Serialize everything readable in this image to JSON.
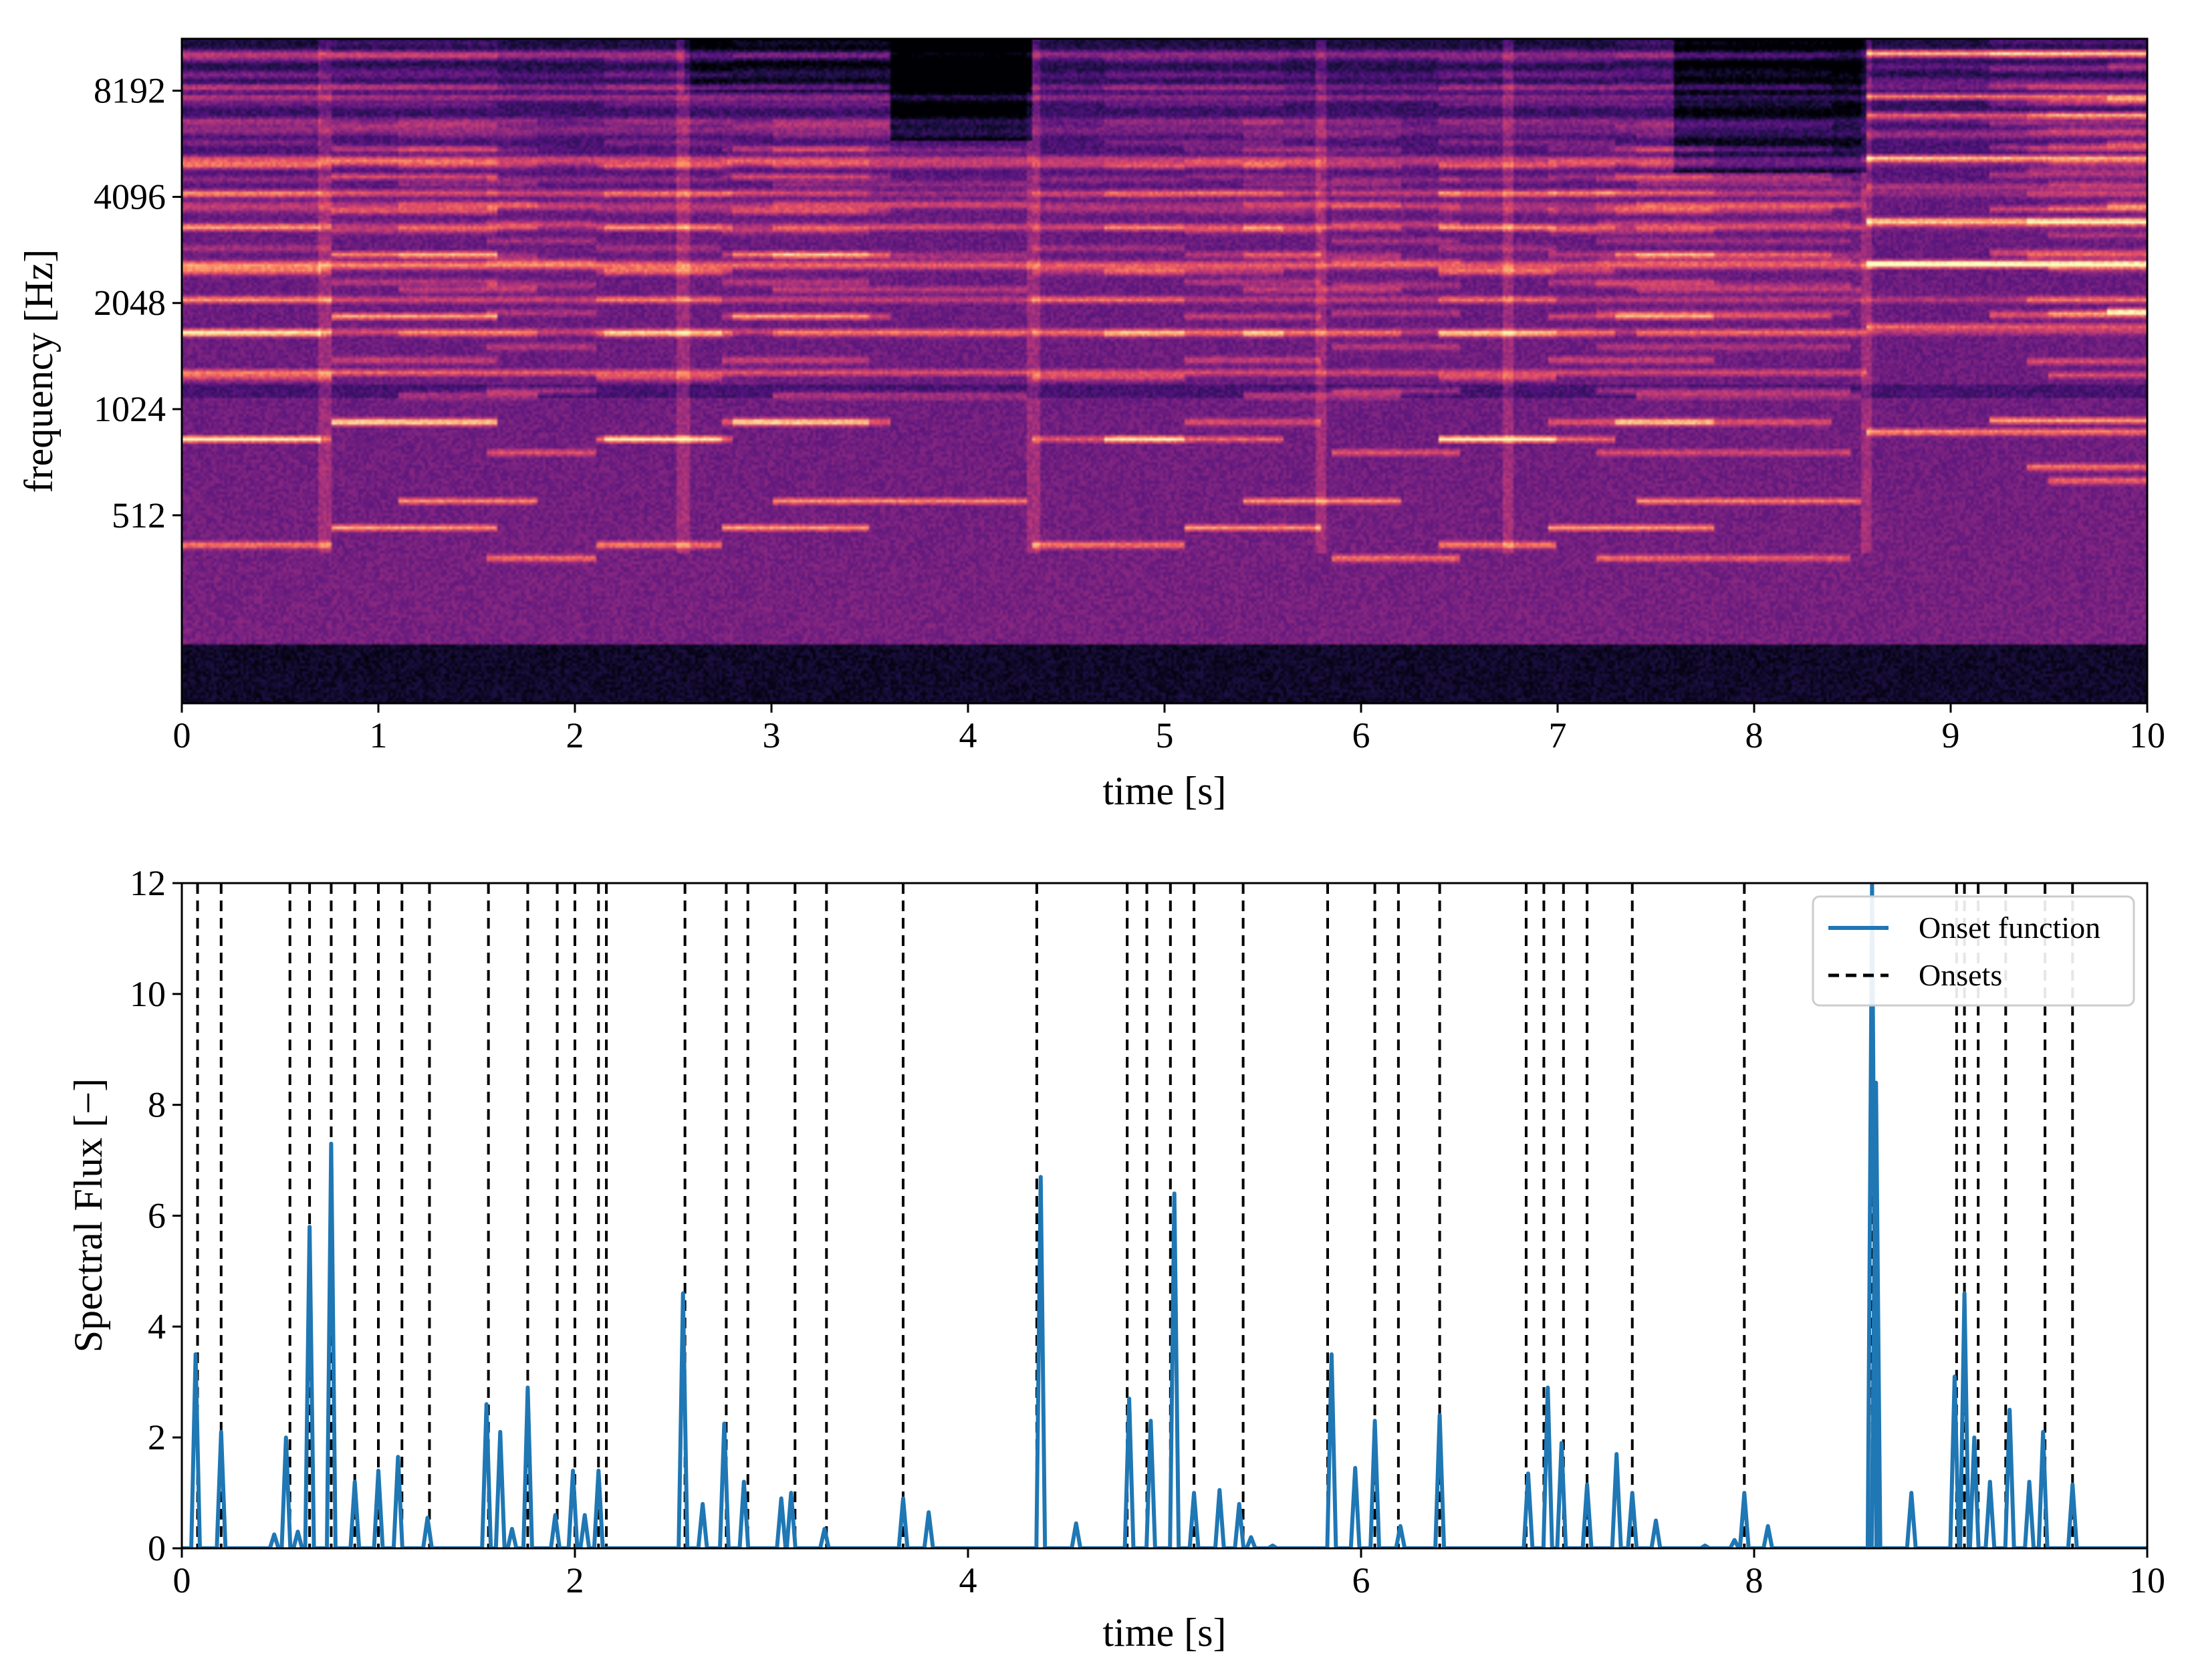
{
  "chart_data": [
    {
      "type": "heatmap",
      "title": "",
      "xlabel": "time [s]",
      "ylabel": "frequency [Hz]",
      "xlim": [
        0,
        10
      ],
      "x_ticks": [
        0,
        1,
        2,
        3,
        4,
        5,
        6,
        7,
        8,
        9,
        10
      ],
      "x_tick_labels": [
        "0",
        "1",
        "2",
        "3",
        "4",
        "5",
        "6",
        "7",
        "8",
        "9",
        "10"
      ],
      "y_scale": "log2",
      "ylim_hz": [
        150,
        11500
      ],
      "y_ticks": [
        512,
        1024,
        2048,
        4096,
        8192
      ],
      "y_tick_labels": [
        "512",
        "1024",
        "2048",
        "4096",
        "8192"
      ],
      "colormap": "magma",
      "segment_boundaries_s": [
        0.72,
        2.55,
        4.33,
        5.8,
        6.75,
        8.58
      ],
      "notes": [
        {
          "t0": 0.0,
          "t1": 0.75,
          "hz": 420,
          "level": 0.85
        },
        {
          "t0": 0.75,
          "t1": 1.6,
          "hz": 470,
          "level": 0.9
        },
        {
          "t0": 1.55,
          "t1": 2.1,
          "hz": 385,
          "level": 0.8
        },
        {
          "t0": 2.1,
          "t1": 2.75,
          "hz": 420,
          "level": 0.85
        },
        {
          "t0": 2.75,
          "t1": 3.5,
          "hz": 470,
          "level": 0.9
        },
        {
          "t0": 3.0,
          "t1": 4.3,
          "hz": 560,
          "level": 0.85
        },
        {
          "t0": 1.1,
          "t1": 1.8,
          "hz": 560,
          "level": 0.8
        },
        {
          "t0": 0.0,
          "t1": 0.7,
          "hz": 840,
          "level": 0.75
        },
        {
          "t0": 0.75,
          "t1": 1.6,
          "hz": 940,
          "level": 0.75
        },
        {
          "t0": 2.15,
          "t1": 2.8,
          "hz": 840,
          "level": 0.7
        },
        {
          "t0": 2.8,
          "t1": 3.6,
          "hz": 940,
          "level": 0.75
        },
        {
          "t0": 4.33,
          "t1": 5.1,
          "hz": 420,
          "level": 0.85
        },
        {
          "t0": 5.1,
          "t1": 5.8,
          "hz": 470,
          "level": 0.85
        },
        {
          "t0": 5.4,
          "t1": 6.2,
          "hz": 560,
          "level": 0.85
        },
        {
          "t0": 5.85,
          "t1": 6.5,
          "hz": 385,
          "level": 0.8
        },
        {
          "t0": 6.4,
          "t1": 7.0,
          "hz": 420,
          "level": 0.85
        },
        {
          "t0": 6.95,
          "t1": 7.8,
          "hz": 470,
          "level": 0.9
        },
        {
          "t0": 7.4,
          "t1": 8.55,
          "hz": 560,
          "level": 0.8
        },
        {
          "t0": 7.2,
          "t1": 8.5,
          "hz": 385,
          "level": 0.75
        },
        {
          "t0": 4.7,
          "t1": 5.6,
          "hz": 840,
          "level": 0.7
        },
        {
          "t0": 6.4,
          "t1": 7.3,
          "hz": 840,
          "level": 0.75
        },
        {
          "t0": 7.3,
          "t1": 8.4,
          "hz": 940,
          "level": 0.7
        },
        {
          "t0": 0.0,
          "t1": 8.58,
          "hz": 1300,
          "level": 0.75
        },
        {
          "t0": 8.58,
          "t1": 10.0,
          "hz": 880,
          "level": 0.95
        },
        {
          "t0": 9.2,
          "t1": 10.0,
          "hz": 950,
          "level": 0.95
        },
        {
          "t0": 9.4,
          "t1": 10.0,
          "hz": 700,
          "level": 0.8
        },
        {
          "t0": 9.5,
          "t1": 10.0,
          "hz": 640,
          "level": 0.75
        },
        {
          "t0": 8.58,
          "t1": 10.0,
          "hz": 2650,
          "level": 0.85
        },
        {
          "t0": 8.58,
          "t1": 10.0,
          "hz": 3500,
          "level": 0.8
        },
        {
          "t0": 9.8,
          "t1": 10.0,
          "hz": 1950,
          "level": 0.8
        },
        {
          "t0": 0.0,
          "t1": 10.0,
          "hz": 2650,
          "level": 0.7
        },
        {
          "t0": 0.0,
          "t1": 10.0,
          "hz": 2100,
          "level": 0.6
        },
        {
          "t0": 0.0,
          "t1": 10.0,
          "hz": 1700,
          "level": 0.6
        }
      ]
    },
    {
      "type": "line",
      "title": "",
      "xlabel": "time [s]",
      "ylabel": "Spectral Flux [−]",
      "xlim": [
        0,
        10
      ],
      "ylim": [
        0,
        12
      ],
      "x_ticks": [
        0,
        2,
        4,
        6,
        8,
        10
      ],
      "x_tick_labels": [
        "0",
        "2",
        "4",
        "6",
        "8",
        "10"
      ],
      "y_ticks": [
        0,
        2,
        4,
        6,
        8,
        10,
        12
      ],
      "y_tick_labels": [
        "0",
        "2",
        "4",
        "6",
        "8",
        "10",
        "12"
      ],
      "legend": {
        "position": "top-right",
        "entries": [
          "Onset function",
          "Onsets"
        ]
      },
      "series": [
        {
          "name": "Onset function",
          "color": "#1f77b4",
          "peaks": [
            [
              0.07,
              3.5
            ],
            [
              0.2,
              2.1
            ],
            [
              0.47,
              0.25
            ],
            [
              0.53,
              2.0
            ],
            [
              0.59,
              0.3
            ],
            [
              0.65,
              5.8
            ],
            [
              0.76,
              7.3
            ],
            [
              0.88,
              1.2
            ],
            [
              1.0,
              1.4
            ],
            [
              1.1,
              1.65
            ],
            [
              1.25,
              0.55
            ],
            [
              1.55,
              2.6
            ],
            [
              1.62,
              2.1
            ],
            [
              1.68,
              0.35
            ],
            [
              1.76,
              2.9
            ],
            [
              1.9,
              0.6
            ],
            [
              1.99,
              1.4
            ],
            [
              2.05,
              0.6
            ],
            [
              2.12,
              1.4
            ],
            [
              2.55,
              4.6
            ],
            [
              2.65,
              0.8
            ],
            [
              2.76,
              2.25
            ],
            [
              2.86,
              1.2
            ],
            [
              3.05,
              0.9
            ],
            [
              3.1,
              1.0
            ],
            [
              3.27,
              0.35
            ],
            [
              3.67,
              0.9
            ],
            [
              3.8,
              0.65
            ],
            [
              4.37,
              6.7
            ],
            [
              4.55,
              0.45
            ],
            [
              4.82,
              2.7
            ],
            [
              4.93,
              2.3
            ],
            [
              5.05,
              6.4
            ],
            [
              5.15,
              1.0
            ],
            [
              5.28,
              1.05
            ],
            [
              5.38,
              0.8
            ],
            [
              5.44,
              0.2
            ],
            [
              5.55,
              0.05
            ],
            [
              5.85,
              3.5
            ],
            [
              5.97,
              1.45
            ],
            [
              6.07,
              2.3
            ],
            [
              6.2,
              0.4
            ],
            [
              6.4,
              2.4
            ],
            [
              6.85,
              1.35
            ],
            [
              6.95,
              2.9
            ],
            [
              7.02,
              1.9
            ],
            [
              7.15,
              1.15
            ],
            [
              7.3,
              1.7
            ],
            [
              7.38,
              1.0
            ],
            [
              7.5,
              0.5
            ],
            [
              7.75,
              0.05
            ],
            [
              7.9,
              0.15
            ],
            [
              7.95,
              1.0
            ],
            [
              8.07,
              0.4
            ],
            [
              8.6,
              12.0
            ],
            [
              8.62,
              8.4
            ],
            [
              8.8,
              1.0
            ],
            [
              9.02,
              3.1
            ],
            [
              9.07,
              4.6
            ],
            [
              9.12,
              2.0
            ],
            [
              9.2,
              1.2
            ],
            [
              9.3,
              2.5
            ],
            [
              9.4,
              1.2
            ],
            [
              9.47,
              2.1
            ],
            [
              9.62,
              1.15
            ]
          ]
        }
      ],
      "onsets": [
        0.08,
        0.2,
        0.55,
        0.65,
        0.76,
        0.88,
        1.0,
        1.12,
        1.26,
        1.56,
        1.76,
        1.91,
        2.0,
        2.12,
        2.16,
        2.56,
        2.77,
        2.88,
        3.12,
        3.28,
        3.67,
        4.35,
        4.81,
        4.91,
        5.03,
        5.15,
        5.4,
        5.83,
        6.07,
        6.19,
        6.4,
        6.84,
        6.93,
        7.03,
        7.15,
        7.38,
        7.95,
        8.6,
        9.03,
        9.07,
        9.14,
        9.28,
        9.48,
        9.62
      ]
    }
  ]
}
